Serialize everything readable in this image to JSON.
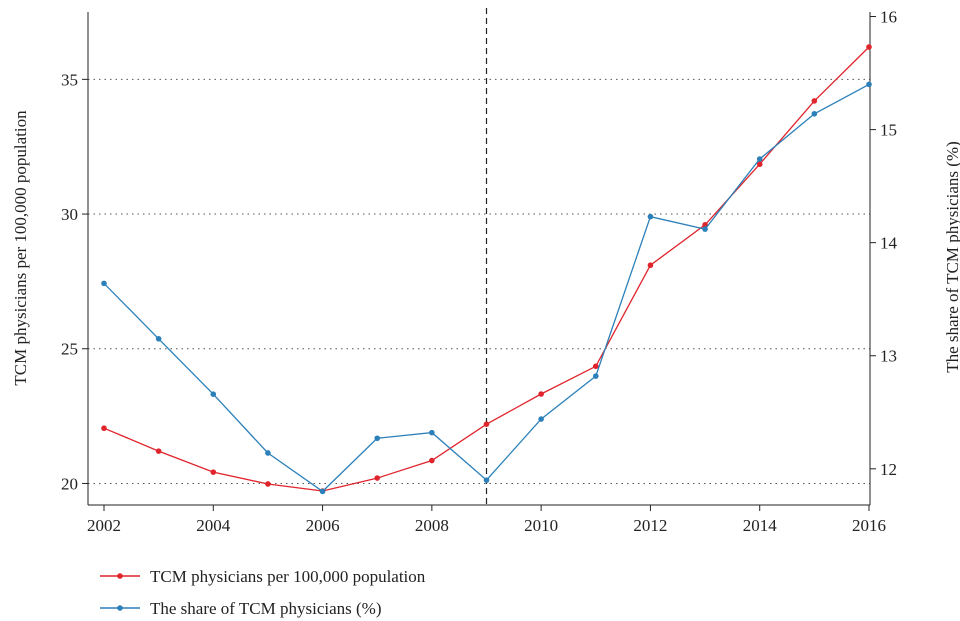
{
  "chart_data": {
    "type": "line",
    "x": [
      2002,
      2003,
      2004,
      2005,
      2006,
      2007,
      2008,
      2009,
      2010,
      2011,
      2012,
      2013,
      2014,
      2015,
      2016
    ],
    "series": [
      {
        "name": "TCM physicians per 100,000 population",
        "axis": "left",
        "color": "#e0242c",
        "values": [
          22.05,
          21.2,
          20.42,
          19.98,
          19.72,
          20.2,
          20.85,
          22.2,
          23.32,
          24.35,
          28.1,
          29.6,
          31.85,
          34.2,
          36.2
        ]
      },
      {
        "name": "The share of TCM physicians (%)",
        "axis": "right",
        "color": "#2c80b9",
        "values": [
          13.64,
          13.15,
          12.66,
          12.14,
          11.8,
          12.27,
          12.32,
          11.9,
          12.44,
          12.82,
          14.23,
          14.12,
          14.74,
          15.14,
          15.4
        ]
      }
    ],
    "x_ticks": [
      2002,
      2004,
      2006,
      2008,
      2010,
      2012,
      2014,
      2016
    ],
    "xlim": [
      2002,
      2016
    ],
    "y_left": {
      "label": "TCM physicians per 100,000 population",
      "ticks": [
        20,
        25,
        30,
        35
      ],
      "lim": [
        19.2,
        37.5
      ]
    },
    "y_right": {
      "label": "The share of TCM physicians (%)",
      "ticks": [
        12,
        13,
        14,
        15,
        16
      ],
      "lim": [
        11.68,
        16.04
      ]
    },
    "vertical_marker_x": 2009,
    "grid": "horizontal-dotted",
    "legend_position": "bottom-left"
  }
}
